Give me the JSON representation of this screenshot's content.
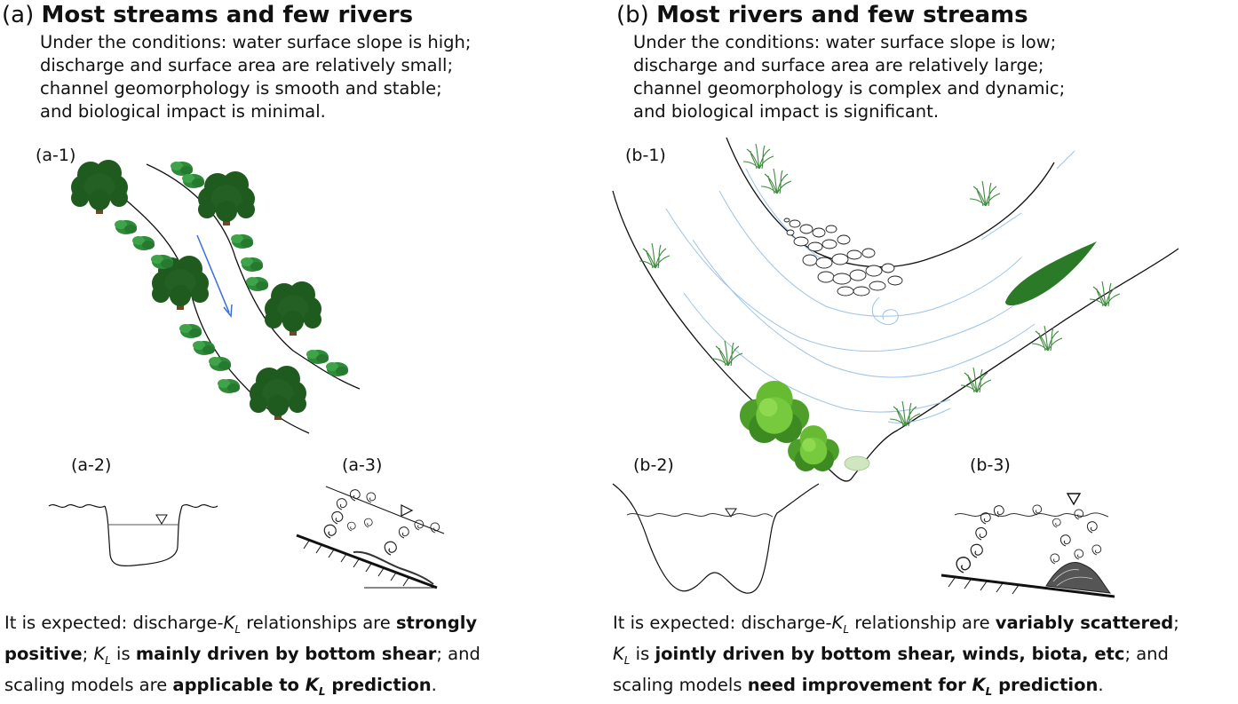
{
  "panel_a": {
    "letter": "(a)",
    "title": "Most streams and few rivers",
    "conditions": [
      "Under the conditions: water surface slope is high;",
      "discharge and surface area are relatively small;",
      "channel geomorphology is smooth and stable;",
      "and biological impact is minimal."
    ],
    "sub_labels": {
      "a1": "(a-1)",
      "a2": "(a-2)",
      "a3": "(a-3)"
    },
    "expected": {
      "l1_pre": "It is expected: discharge-",
      "k": "K",
      "l": "L",
      "l1_mid": " relationships are ",
      "l1_bold": "strongly",
      "l2_bold": "positive",
      "l2_a": "; ",
      "l2_b": " is ",
      "l2_bold2": "mainly driven by bottom shear",
      "l2_c": "; and",
      "l3_pre": "scaling models are ",
      "l3_bold": "applicable to ",
      "l3_bold2": " prediction",
      "l3_end": "."
    }
  },
  "panel_b": {
    "letter": "(b)",
    "title": "Most rivers and few streams",
    "conditions": [
      "Under the conditions: water surface slope is low;",
      "discharge and surface area are relatively large;",
      "channel geomorphology is complex and dynamic;",
      "and biological impact is significant."
    ],
    "sub_labels": {
      "b1": "(b-1)",
      "b2": "(b-2)",
      "b3": "(b-3)"
    },
    "expected": {
      "l1_pre": "It is expected: discharge-",
      "k": "K",
      "l": "L",
      "l1_mid": " relationship are ",
      "l1_bold": "variably scattered",
      "l1_end": ";",
      "l2_a": " is ",
      "l2_bold": "jointly driven by bottom shear, winds,  biota, etc",
      "l2_c": "; and",
      "l3_pre": "scaling models ",
      "l3_bold": "need improvement for ",
      "l3_bold2": " prediction",
      "l3_end": "."
    }
  },
  "colors": {
    "tree_dark": "#1f5a1f",
    "tree_mid": "#2f7a2f",
    "shrub": "#2e8b3a",
    "bush_light": "#66bb33",
    "arrow_blue": "#3a6fd8",
    "flowline": "#9ec3e6",
    "grass": "#3f8a3f",
    "trunk": "#6b4a2a"
  }
}
